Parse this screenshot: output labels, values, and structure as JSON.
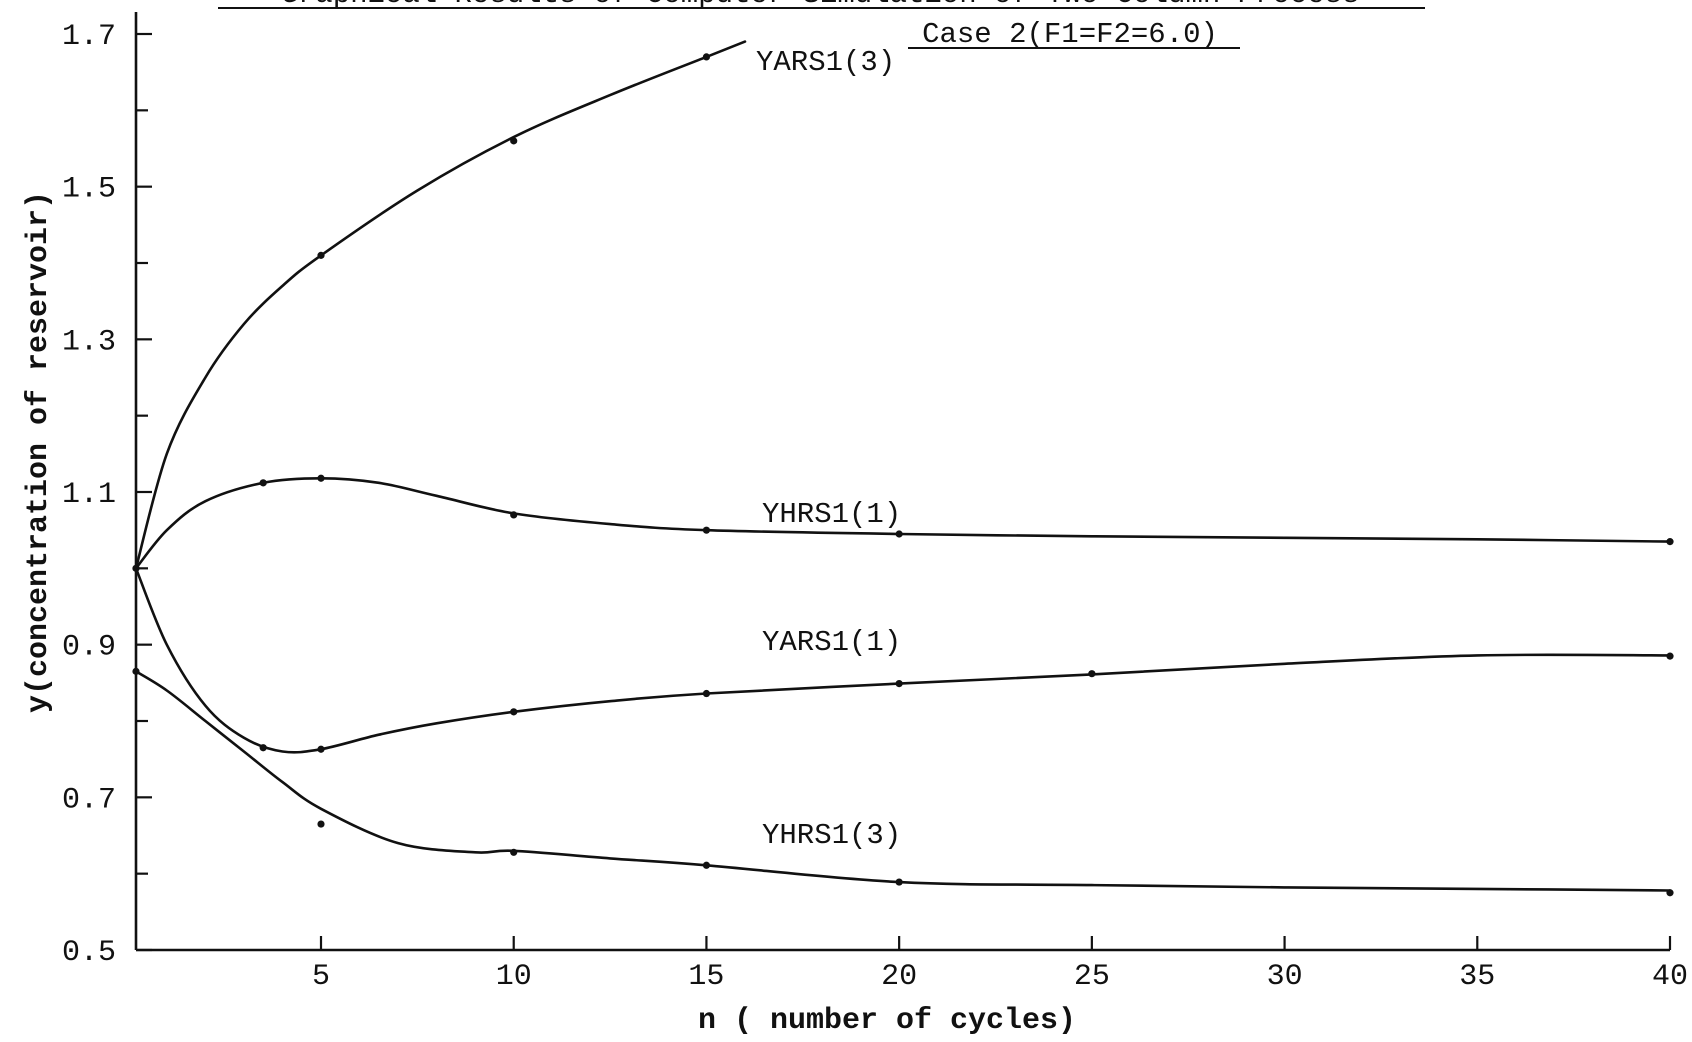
{
  "chart_data": {
    "type": "line",
    "title_line1": "Graphical Results of Computer Simulation of Two-Column Process",
    "title_line2": "Case 2(F1=F2=6.0)",
    "xlabel": "n ( number of cycles)",
    "ylabel": "y(concentration of reservoir)",
    "xlim": [
      0.2,
      40
    ],
    "ylim": [
      0.5,
      1.7
    ],
    "x_ticks": [
      5,
      10,
      15,
      20,
      25,
      30,
      35,
      40
    ],
    "x_tick_labels": [
      "5",
      "10",
      "15",
      "20",
      "25",
      "30",
      "35",
      "40"
    ],
    "y_ticks_major": [
      0.5,
      0.7,
      0.9,
      1.1,
      1.3,
      1.5,
      1.7
    ],
    "y_tick_labels": [
      "0.5",
      "0.7",
      "0.9",
      "1.1",
      "1.3",
      "1.5",
      "1.7"
    ],
    "y_ticks_minor": [
      0.6,
      0.8,
      1.0,
      1.2,
      1.4,
      1.6
    ],
    "grid": false,
    "legend": "none",
    "series": [
      {
        "name": "YARS1(3)",
        "label": "YARS1(3)",
        "x": [
          0.2,
          1,
          2,
          3,
          4,
          5,
          7.5,
          10,
          12.5,
          15,
          16
        ],
        "y": [
          1.0,
          1.15,
          1.25,
          1.32,
          1.37,
          1.41,
          1.495,
          1.565,
          1.62,
          1.67,
          1.69
        ],
        "markers_x": [
          5,
          10,
          15
        ],
        "markers_y": [
          1.41,
          1.56,
          1.67
        ]
      },
      {
        "name": "YHRS1(1)",
        "label": "YHRS1(1)",
        "x": [
          0.2,
          1,
          2,
          3.5,
          5,
          6.5,
          8,
          10,
          12.5,
          15,
          20,
          25,
          30,
          35,
          40
        ],
        "y": [
          1.0,
          1.05,
          1.088,
          1.112,
          1.118,
          1.112,
          1.095,
          1.072,
          1.058,
          1.05,
          1.045,
          1.042,
          1.04,
          1.038,
          1.035
        ],
        "markers_x": [
          0.2,
          3.5,
          5,
          10,
          15,
          20,
          40
        ],
        "markers_y": [
          1.0,
          1.112,
          1.118,
          1.07,
          1.05,
          1.045,
          1.035
        ]
      },
      {
        "name": "YARS1(1)",
        "label": "YARS1(1)",
        "x": [
          0.2,
          1,
          2,
          3,
          4,
          5,
          6.5,
          8,
          10,
          12.5,
          15,
          20,
          25,
          30,
          35,
          40
        ],
        "y": [
          1.0,
          0.9,
          0.82,
          0.778,
          0.76,
          0.763,
          0.782,
          0.797,
          0.812,
          0.826,
          0.836,
          0.849,
          0.861,
          0.875,
          0.886,
          0.886
        ],
        "markers_x": [
          3.5,
          5,
          10,
          15,
          20,
          25,
          40
        ],
        "markers_y": [
          0.765,
          0.763,
          0.812,
          0.836,
          0.849,
          0.862,
          0.885
        ]
      },
      {
        "name": "YHRS1(3)",
        "label": "YHRS1(3)",
        "x": [
          0.2,
          1,
          2,
          3,
          4,
          5,
          7,
          9,
          10,
          12.5,
          15,
          20,
          25,
          30,
          35,
          40
        ],
        "y": [
          0.865,
          0.84,
          0.8,
          0.76,
          0.72,
          0.685,
          0.64,
          0.628,
          0.63,
          0.62,
          0.611,
          0.589,
          0.585,
          0.582,
          0.58,
          0.578
        ],
        "markers_x": [
          0.2,
          5,
          10,
          15,
          20,
          40
        ],
        "markers_y": [
          0.865,
          0.665,
          0.628,
          0.611,
          0.589,
          0.575
        ]
      }
    ]
  }
}
